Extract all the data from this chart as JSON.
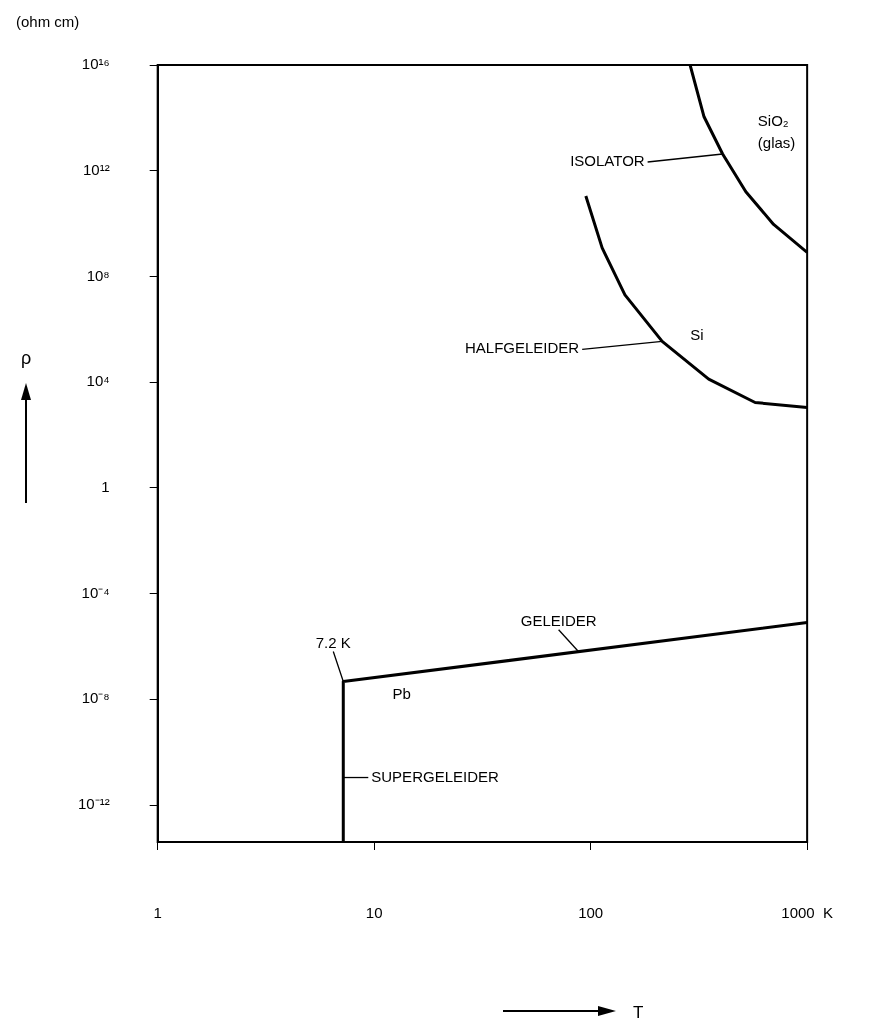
{
  "chart_data": {
    "type": "line",
    "xlabel": "T",
    "ylabel": "ρ",
    "annotations": [
      "(ohm cm)",
      {
        "text": "ISOLATOR",
        "x": 407,
        "y": 4300000000000.0
      },
      {
        "text": "HALFGELEIDER",
        "x": 214,
        "y": 350000.0
      },
      {
        "text": "GELEIDER",
        "x": 88,
        "y": 6.3e-07
      },
      {
        "text": "7.2 K",
        "x": 7.2,
        "y": 4.7e-08
      },
      {
        "text": "SUPERGELEIDER",
        "x": 7.2,
        "y": 1.1e-11
      }
    ],
    "series": [
      {
        "name": "SiO₂ (glas)",
        "color": "#000000",
        "x": [
          288,
          334,
          407,
          521,
          700,
          1000
        ],
        "values": [
          1e+16,
          110000000000000.0,
          4300000000000.0,
          160000000000.0,
          9300000000.0,
          810000000.0
        ]
      },
      {
        "name": "Si",
        "color": "#000000",
        "x": [
          95,
          113,
          144,
          214,
          351,
          575,
          1000
        ],
        "values": [
          110000000000.0,
          1200000000.0,
          20000000.0,
          350000.0,
          13000.0,
          1700.0,
          1100.0
        ]
      },
      {
        "name": "Pb",
        "color": "#000000",
        "x": [
          7.2,
          7.2,
          1000
        ],
        "values": [
          4e-14,
          4.7e-08,
          8e-06
        ]
      }
    ],
    "log": "xy",
    "xlim": [
      1,
      1000
    ],
    "ylim": [
      4e-14,
      1e+16
    ],
    "xticks": [
      1,
      10,
      100,
      {
        "value": 1000,
        "label": "1000  K"
      }
    ],
    "yticks": [
      {
        "value": 1e+16,
        "label": "10¹⁶"
      },
      {
        "value": 1000000000000.0,
        "label": "10¹²"
      },
      {
        "value": 100000000.0,
        "label": "10⁸"
      },
      {
        "value": 10000.0,
        "label": "10⁴"
      },
      1,
      {
        "value": 0.0001,
        "label": "10⁻⁴"
      },
      {
        "value": 1e-08,
        "label": "10⁻⁸"
      },
      {
        "value": 1e-12,
        "label": "10⁻¹²"
      }
    ],
    "grid": false,
    "legend": false,
    "marker": "none",
    "line_style": "solid"
  }
}
